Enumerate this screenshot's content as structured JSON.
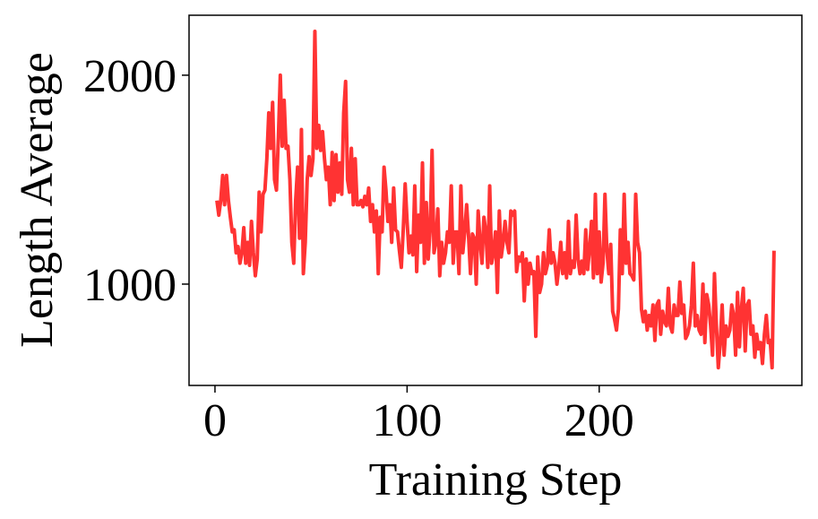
{
  "chart_data": {
    "type": "line",
    "xlabel": "Training Step",
    "ylabel": "Length Average",
    "x": [
      1,
      2,
      3,
      4,
      5,
      6,
      7,
      8,
      9,
      10,
      11,
      12,
      13,
      14,
      15,
      16,
      17,
      18,
      19,
      20,
      21,
      22,
      23,
      24,
      25,
      26,
      27,
      28,
      29,
      30,
      31,
      32,
      33,
      34,
      35,
      36,
      37,
      38,
      39,
      40,
      41,
      42,
      43,
      44,
      45,
      46,
      47,
      48,
      49,
      50,
      51,
      52,
      53,
      54,
      55,
      56,
      57,
      58,
      59,
      60,
      61,
      62,
      63,
      64,
      65,
      66,
      67,
      68,
      69,
      70,
      71,
      72,
      73,
      74,
      75,
      76,
      77,
      78,
      79,
      80,
      81,
      82,
      83,
      84,
      85,
      86,
      87,
      88,
      89,
      90,
      91,
      92,
      93,
      94,
      95,
      96,
      97,
      98,
      99,
      100,
      101,
      102,
      103,
      104,
      105,
      106,
      107,
      108,
      109,
      110,
      111,
      112,
      113,
      114,
      115,
      116,
      117,
      118,
      119,
      120,
      121,
      122,
      123,
      124,
      125,
      126,
      127,
      128,
      129,
      130,
      131,
      132,
      133,
      134,
      135,
      136,
      137,
      138,
      139,
      140,
      141,
      142,
      143,
      144,
      145,
      146,
      147,
      148,
      149,
      150,
      151,
      152,
      153,
      154,
      155,
      156,
      157,
      158,
      159,
      160,
      161,
      162,
      163,
      164,
      165,
      166,
      167,
      168,
      169,
      170,
      171,
      172,
      173,
      174,
      175,
      176,
      177,
      178,
      179,
      180,
      181,
      182,
      183,
      184,
      185,
      186,
      187,
      188,
      189,
      190,
      191,
      192,
      193,
      194,
      195,
      196,
      197,
      198,
      199,
      200,
      201,
      202,
      203,
      204,
      205,
      206,
      207,
      208,
      209,
      210,
      211,
      212,
      213,
      214,
      215,
      216,
      217,
      218,
      219,
      220,
      221,
      222,
      223,
      224,
      225,
      226,
      227,
      228,
      229,
      230,
      231,
      232,
      233,
      234,
      235,
      236,
      237,
      238,
      239,
      240,
      241,
      242,
      243,
      244,
      245,
      246,
      247,
      248,
      249,
      250,
      251,
      252,
      253,
      254,
      255,
      256,
      257,
      258,
      259,
      260,
      261,
      262,
      263,
      264,
      265,
      266,
      267,
      268,
      269,
      270,
      271,
      272,
      273,
      274,
      275,
      276,
      277,
      278,
      279,
      280,
      281,
      282,
      283,
      284,
      285,
      286,
      287,
      288,
      289,
      290,
      291
    ],
    "series": [
      {
        "name": "Length Average",
        "color": "#ff3333",
        "values": [
          1400,
          1330,
          1400,
          1520,
          1380,
          1520,
          1400,
          1320,
          1250,
          1260,
          1150,
          1180,
          1100,
          1150,
          1270,
          1100,
          1200,
          1090,
          1300,
          1150,
          1040,
          1120,
          1440,
          1250,
          1430,
          1450,
          1600,
          1820,
          1650,
          1870,
          1500,
          1450,
          1700,
          2000,
          1660,
          1880,
          1650,
          1660,
          1500,
          1200,
          1100,
          1400,
          1560,
          1220,
          1740,
          1050,
          1200,
          1500,
          1610,
          1520,
          1600,
          2210,
          1650,
          1760,
          1640,
          1730,
          1600,
          1500,
          1560,
          1380,
          1630,
          1400,
          1620,
          1440,
          1580,
          1430,
          1820,
          1970,
          1500,
          1440,
          1650,
          1380,
          1600,
          1380,
          1380,
          1400,
          1370,
          1420,
          1380,
          1460,
          1300,
          1380,
          1250,
          1350,
          1050,
          1320,
          1250,
          1560,
          1450,
          1300,
          1380,
          1200,
          1460,
          1260,
          1250,
          1160,
          1080,
          1260,
          1480,
          1300,
          1150,
          1230,
          1140,
          1470,
          1060,
          1330,
          1200,
          1580,
          1100,
          1390,
          1120,
          1260,
          1640,
          1150,
          1200,
          1360,
          1040,
          1200,
          1100,
          1150,
          1250,
          1200,
          1470,
          1100,
          1250,
          1250,
          1050,
          1470,
          1150,
          1250,
          1380,
          1230,
          1050,
          1240,
          1220,
          1000,
          1350,
          1200,
          1100,
          1320,
          1250,
          1080,
          1470,
          1100,
          1150,
          1250,
          960,
          1350,
          1130,
          1200,
          1300,
          1200,
          1150,
          1350,
          1330,
          1350,
          1060,
          1130,
          1110,
          1150,
          920,
          1120,
          1000,
          1100,
          1050,
          1060,
          750,
          1130,
          960,
          1000,
          1150,
          1050,
          1090,
          1260,
          1100,
          1150,
          1100,
          1000,
          1080,
          1200,
          1050,
          1150,
          1030,
          1300,
          1050,
          1110,
          1080,
          1330,
          1120,
          1050,
          1110,
          1050,
          1260,
          1070,
          1170,
          1300,
          1030,
          1430,
          1050,
          1250,
          1010,
          1100,
          1430,
          1160,
          1050,
          1190,
          870,
          830,
          780,
          880,
          1260,
          1050,
          1430,
          1100,
          1200,
          1050,
          1040,
          1020,
          1430,
          1200,
          1150,
          880,
          820,
          870,
          780,
          850,
          800,
          900,
          730,
          900,
          920,
          760,
          870,
          820,
          800,
          980,
          800,
          770,
          900,
          850,
          850,
          1010,
          860,
          900,
          740,
          760,
          800,
          900,
          1100,
          800,
          850,
          780,
          760,
          1000,
          720,
          950,
          900,
          800,
          660,
          1050,
          800,
          600,
          720,
          900,
          660,
          800,
          750,
          780,
          900,
          850,
          660,
          960,
          700,
          880,
          980,
          680,
          900,
          920,
          760,
          800,
          650,
          760,
          690,
          720,
          620,
          760,
          850,
          720,
          730,
          600,
          1160
        ]
      }
    ],
    "xlim": [
      -13.5,
      305.5
    ],
    "xticks": [
      0,
      100,
      200
    ],
    "ylim": [
      515,
      2287
    ],
    "yticks": [
      1000,
      2000
    ]
  }
}
